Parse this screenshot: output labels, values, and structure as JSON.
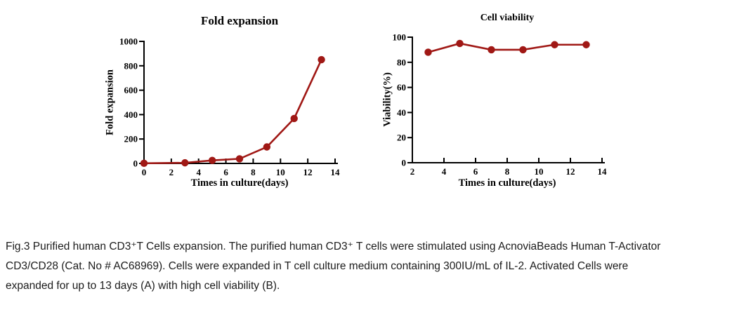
{
  "figure": {
    "caption_lines": [
      "Fig.3 Purified human CD3⁺T Cells expansion. The purified human CD3⁺ T cells were stimulated using AcnoviaBeads Human T-Activator",
      "CD3/CD28 (Cat. No # AC68969). Cells were expanded in T cell culture medium containing 300IU/mL of IL-2. Activated Cells were",
      "expanded for up to 13 days (A) with high cell viability (B)."
    ]
  },
  "chart_data": [
    {
      "id": "fold_expansion",
      "type": "line",
      "title": "Fold expansion",
      "xlabel": "Times in culture(days)",
      "ylabel": "Fold expansion",
      "x": [
        0,
        3,
        5,
        7,
        9,
        11,
        13
      ],
      "y": [
        1,
        5,
        25,
        38,
        135,
        368,
        850
      ],
      "xlim": [
        0,
        14
      ],
      "ylim": [
        0,
        1000
      ],
      "xticks": [
        0,
        2,
        4,
        6,
        8,
        10,
        12,
        14
      ],
      "yticks": [
        0,
        200,
        400,
        600,
        800,
        1000
      ],
      "line_color": "#A01815",
      "marker": "circle",
      "grid": false,
      "legend": null
    },
    {
      "id": "cell_viability",
      "type": "line",
      "title": "Cell viability",
      "xlabel": "Times in culture(days)",
      "ylabel": "Viability(%)",
      "x": [
        3,
        5,
        7,
        9,
        11,
        13
      ],
      "y": [
        88,
        95,
        90,
        90,
        94,
        94
      ],
      "xlim": [
        2,
        14
      ],
      "ylim": [
        0,
        100
      ],
      "xticks": [
        2,
        4,
        6,
        8,
        10,
        12,
        14
      ],
      "yticks": [
        0,
        20,
        40,
        60,
        80,
        100
      ],
      "line_color": "#A01815",
      "marker": "circle",
      "grid": false,
      "legend": null
    }
  ]
}
